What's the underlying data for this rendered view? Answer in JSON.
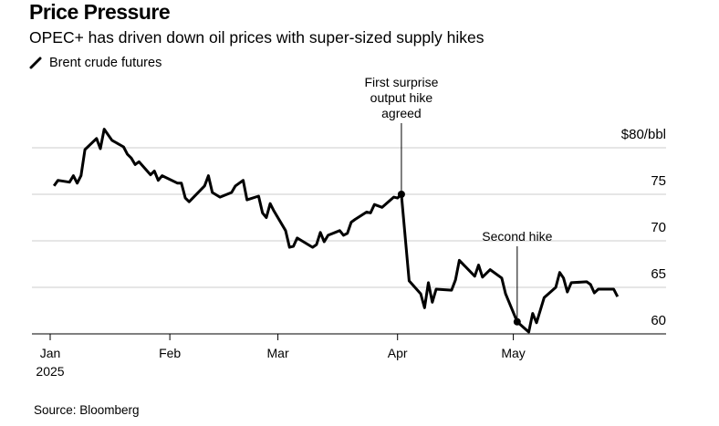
{
  "title": "Price Pressure",
  "subtitle": "OPEC+ has driven down oil prices with super-sized supply hikes",
  "source": "Source: Bloomberg",
  "chart_data": {
    "type": "line",
    "title": "Price Pressure",
    "subtitle": "OPEC+ has driven down oil prices with super-sized supply hikes",
    "ylabel": "",
    "y_unit_label": "$80/bbl",
    "ylim": [
      60,
      80
    ],
    "y_ticks": [
      60,
      65,
      70,
      75,
      80
    ],
    "y_tick_labels": [
      "60",
      "65",
      "70",
      "75",
      "$80/bbl"
    ],
    "x_ticks": [
      "2025-01-01",
      "2025-02-01",
      "2025-03-01",
      "2025-04-01",
      "2025-05-01"
    ],
    "x_tick_labels": [
      "Jan",
      "Feb",
      "Mar",
      "Apr",
      "May"
    ],
    "x_year_label": "2025",
    "grid": true,
    "legend": "top-left",
    "line_color": "#000000",
    "series": [
      {
        "name": "Brent crude futures",
        "x": [
          "2025-01-02",
          "2025-01-03",
          "2025-01-06",
          "2025-01-07",
          "2025-01-08",
          "2025-01-09",
          "2025-01-10",
          "2025-01-13",
          "2025-01-14",
          "2025-01-15",
          "2025-01-17",
          "2025-01-20",
          "2025-01-21",
          "2025-01-22",
          "2025-01-23",
          "2025-01-24",
          "2025-01-27",
          "2025-01-28",
          "2025-01-29",
          "2025-01-30",
          "2025-02-03",
          "2025-02-04",
          "2025-02-05",
          "2025-02-06",
          "2025-02-10",
          "2025-02-11",
          "2025-02-12",
          "2025-02-14",
          "2025-02-17",
          "2025-02-18",
          "2025-02-20",
          "2025-02-21",
          "2025-02-24",
          "2025-02-25",
          "2025-02-26",
          "2025-02-27",
          "2025-02-28",
          "2025-03-03",
          "2025-03-04",
          "2025-03-05",
          "2025-03-06",
          "2025-03-10",
          "2025-03-11",
          "2025-03-12",
          "2025-03-13",
          "2025-03-14",
          "2025-03-17",
          "2025-03-18",
          "2025-03-19",
          "2025-03-20",
          "2025-03-21",
          "2025-03-24",
          "2025-03-25",
          "2025-03-26",
          "2025-03-28",
          "2025-03-31",
          "2025-04-01",
          "2025-04-02",
          "2025-04-04",
          "2025-04-07",
          "2025-04-08",
          "2025-04-09",
          "2025-04-10",
          "2025-04-11",
          "2025-04-15",
          "2025-04-16",
          "2025-04-17",
          "2025-04-21",
          "2025-04-22",
          "2025-04-23",
          "2025-04-25",
          "2025-04-28",
          "2025-04-29",
          "2025-05-02",
          "2025-05-05",
          "2025-05-06",
          "2025-05-07",
          "2025-05-09",
          "2025-05-12",
          "2025-05-13",
          "2025-05-14",
          "2025-05-15",
          "2025-05-16",
          "2025-05-20",
          "2025-05-21",
          "2025-05-22",
          "2025-05-23",
          "2025-05-27",
          "2025-05-28"
        ],
        "values": [
          75.9,
          76.5,
          76.3,
          77.0,
          76.2,
          77.0,
          79.8,
          81.0,
          79.9,
          82.0,
          80.8,
          80.1,
          79.3,
          78.9,
          78.2,
          78.5,
          77.1,
          77.5,
          76.5,
          77.0,
          76.2,
          76.2,
          74.6,
          74.2,
          75.9,
          77.0,
          75.2,
          74.7,
          75.2,
          75.9,
          76.5,
          74.4,
          74.8,
          73.0,
          72.5,
          74.0,
          73.2,
          71.1,
          69.3,
          69.4,
          70.3,
          69.3,
          69.6,
          70.9,
          69.9,
          70.6,
          71.1,
          70.6,
          70.8,
          72.0,
          72.3,
          73.1,
          73.0,
          73.9,
          73.6,
          74.7,
          74.6,
          75.0,
          65.7,
          64.3,
          62.8,
          65.5,
          63.4,
          64.8,
          64.7,
          65.8,
          67.9,
          66.2,
          67.4,
          66.1,
          66.9,
          66.0,
          64.3,
          61.3,
          60.2,
          62.2,
          61.2,
          63.9,
          65.0,
          66.6,
          66.0,
          64.5,
          65.5,
          65.6,
          65.3,
          64.4,
          64.8,
          64.8,
          64.0
        ]
      }
    ],
    "annotations": [
      {
        "x": "2025-04-02",
        "y": 75.0,
        "lines": [
          "First surprise",
          "output hike",
          "agreed"
        ]
      },
      {
        "x": "2025-05-02",
        "y": 61.3,
        "lines": [
          "Second hike"
        ]
      }
    ]
  }
}
